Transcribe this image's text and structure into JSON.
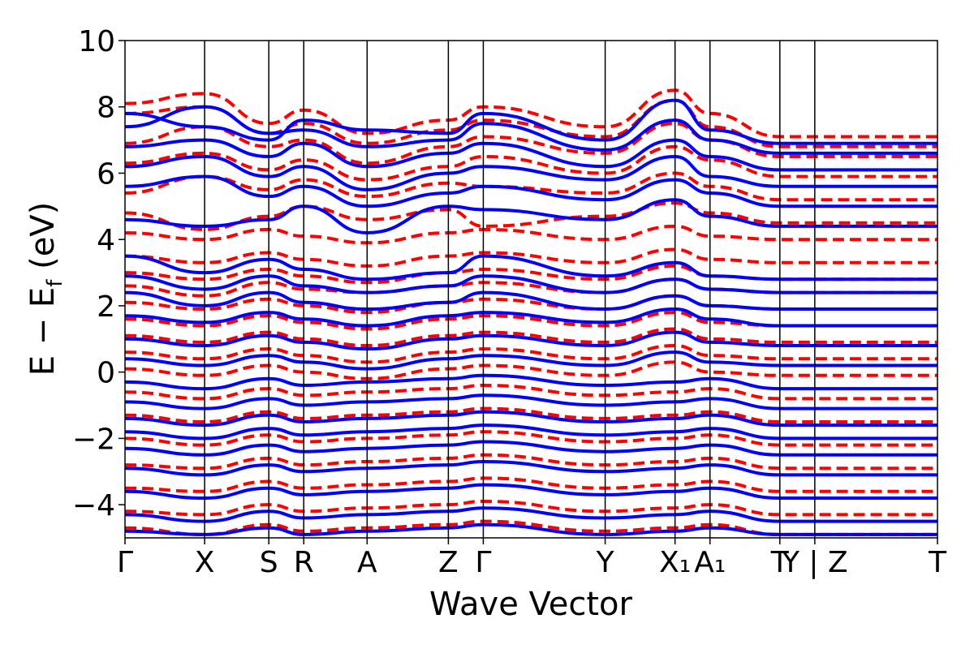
{
  "chart_data": {
    "type": "line",
    "title": "",
    "xlabel": "Wave Vector",
    "ylabel_parts": {
      "main": "E − E",
      "sub": "f",
      "unit": " (eV)"
    },
    "ylim": [
      -5,
      10
    ],
    "yticks": [
      -4,
      -2,
      0,
      2,
      4,
      6,
      8,
      10
    ],
    "ytick_labels": [
      "−4",
      "−2",
      "0",
      "2",
      "4",
      "6",
      "8",
      "10"
    ],
    "xlim": [
      0,
      10
    ],
    "kpoints": [
      {
        "label": "Γ",
        "pos": 0.0
      },
      {
        "label": "X",
        "pos": 0.98
      },
      {
        "label": "S",
        "pos": 1.77
      },
      {
        "label": "R",
        "pos": 2.2
      },
      {
        "label": "A",
        "pos": 2.98
      },
      {
        "label": "Z",
        "pos": 3.98
      },
      {
        "label": "Γ",
        "pos": 4.41
      },
      {
        "label": "Y",
        "pos": 5.91
      },
      {
        "label": "X₁",
        "pos": 6.77
      },
      {
        "label": "A₁",
        "pos": 7.2
      },
      {
        "label": "T",
        "pos": 8.06
      },
      {
        "label": "Y | Z",
        "pos": 8.49
      },
      {
        "label": "T",
        "pos": 10.0
      }
    ],
    "series": [
      {
        "style": "dashed",
        "color": "#ff0000",
        "bands": [
          [
            8.1,
            8.4,
            7.5,
            7.9,
            7.2,
            7.6,
            8.0,
            7.4,
            8.5,
            7.8,
            7.1
          ],
          [
            7.8,
            8.0,
            7.2,
            7.5,
            6.9,
            7.3,
            7.6,
            7.1,
            8.2,
            7.4,
            6.8
          ],
          [
            6.9,
            7.4,
            6.8,
            7.0,
            6.3,
            6.8,
            7.1,
            6.6,
            7.5,
            7.0,
            6.5
          ],
          [
            6.3,
            6.6,
            6.1,
            6.4,
            5.8,
            6.2,
            6.5,
            6.0,
            6.8,
            6.4,
            5.9
          ],
          [
            5.4,
            5.9,
            5.5,
            5.8,
            5.3,
            5.7,
            5.6,
            5.4,
            6.0,
            5.6,
            5.2
          ],
          [
            4.8,
            4.3,
            4.7,
            5.0,
            4.6,
            4.9,
            4.4,
            4.7,
            5.1,
            4.8,
            4.5
          ],
          [
            4.2,
            4.0,
            4.3,
            4.1,
            3.9,
            4.2,
            4.3,
            4.0,
            4.4,
            4.1,
            4.0
          ],
          [
            3.5,
            3.3,
            3.6,
            3.4,
            3.2,
            3.5,
            3.6,
            3.3,
            3.7,
            3.4,
            3.3
          ],
          [
            3.0,
            2.8,
            3.1,
            2.9,
            2.7,
            3.0,
            3.1,
            2.8,
            3.2,
            2.9,
            2.8
          ],
          [
            2.6,
            2.3,
            2.7,
            2.5,
            2.4,
            2.6,
            2.7,
            2.4,
            2.8,
            2.5,
            2.4
          ],
          [
            2.1,
            1.9,
            2.2,
            2.0,
            1.8,
            2.1,
            2.2,
            1.9,
            2.3,
            2.0,
            1.9
          ],
          [
            1.6,
            1.4,
            1.7,
            1.5,
            1.3,
            1.6,
            1.7,
            1.4,
            1.8,
            1.5,
            1.4
          ],
          [
            1.1,
            0.9,
            1.2,
            1.0,
            0.8,
            1.1,
            1.2,
            0.9,
            1.3,
            1.0,
            0.9
          ],
          [
            0.6,
            0.4,
            0.7,
            0.5,
            0.3,
            0.6,
            0.7,
            0.4,
            0.8,
            0.5,
            0.4
          ],
          [
            0.1,
            -0.1,
            0.2,
            0.0,
            -0.2,
            0.1,
            0.2,
            -0.1,
            0.3,
            0.0,
            -0.1
          ],
          [
            -0.6,
            -0.8,
            -0.5,
            -0.7,
            -0.6,
            -0.5,
            -0.4,
            -0.7,
            -0.6,
            -0.5,
            -0.8
          ],
          [
            -1.3,
            -1.5,
            -1.2,
            -1.4,
            -1.3,
            -1.2,
            -1.1,
            -1.4,
            -1.3,
            -1.2,
            -1.5
          ],
          [
            -2.0,
            -2.2,
            -1.9,
            -2.1,
            -2.0,
            -1.9,
            -1.8,
            -2.1,
            -2.0,
            -1.9,
            -2.2
          ],
          [
            -2.8,
            -2.9,
            -2.6,
            -2.8,
            -2.7,
            -2.6,
            -2.5,
            -2.8,
            -2.7,
            -2.6,
            -2.9
          ],
          [
            -3.5,
            -3.6,
            -3.3,
            -3.5,
            -3.4,
            -3.3,
            -3.2,
            -3.5,
            -3.4,
            -3.3,
            -3.6
          ],
          [
            -4.2,
            -4.3,
            -4.0,
            -4.2,
            -4.1,
            -4.0,
            -3.9,
            -4.2,
            -4.1,
            -4.0,
            -4.3
          ],
          [
            -4.7,
            -4.9,
            -4.6,
            -4.8,
            -4.7,
            -4.6,
            -4.5,
            -4.8,
            -4.7,
            -4.6,
            -4.9
          ]
        ]
      },
      {
        "style": "solid",
        "color": "#0000ff",
        "bands": [
          [
            7.8,
            7.4,
            7.0,
            7.6,
            7.3,
            7.2,
            7.8,
            7.0,
            8.2,
            7.3,
            6.9
          ],
          [
            7.4,
            8.0,
            7.2,
            7.3,
            6.8,
            7.0,
            7.5,
            6.7,
            7.6,
            7.0,
            6.6
          ],
          [
            6.8,
            7.0,
            6.5,
            6.9,
            6.2,
            6.6,
            6.9,
            6.2,
            7.0,
            6.5,
            6.1
          ],
          [
            6.2,
            6.5,
            5.9,
            6.2,
            5.5,
            6.0,
            6.2,
            5.8,
            6.5,
            5.9,
            5.6
          ],
          [
            5.6,
            5.9,
            5.3,
            5.6,
            5.0,
            5.4,
            5.6,
            5.2,
            5.8,
            5.4,
            5.0
          ],
          [
            4.6,
            4.4,
            4.6,
            5.0,
            4.2,
            5.0,
            4.9,
            4.6,
            5.2,
            4.7,
            4.4
          ],
          [
            3.5,
            3.0,
            3.4,
            3.1,
            2.8,
            3.0,
            3.5,
            2.9,
            3.3,
            2.9,
            2.8
          ],
          [
            2.9,
            2.5,
            2.9,
            2.6,
            2.4,
            2.6,
            2.9,
            2.4,
            2.8,
            2.5,
            2.4
          ],
          [
            2.4,
            2.0,
            2.4,
            2.1,
            1.9,
            2.1,
            2.4,
            1.9,
            2.3,
            2.0,
            1.9
          ],
          [
            1.7,
            1.5,
            1.8,
            1.6,
            1.4,
            1.7,
            1.8,
            1.5,
            1.9,
            1.6,
            1.4
          ],
          [
            1.0,
            0.8,
            1.1,
            0.9,
            0.7,
            1.0,
            1.1,
            0.8,
            1.2,
            0.9,
            0.8
          ],
          [
            0.4,
            0.2,
            0.5,
            0.3,
            0.1,
            0.4,
            0.5,
            0.2,
            0.6,
            0.3,
            0.2
          ],
          [
            -0.3,
            -0.5,
            -0.2,
            -0.4,
            -0.3,
            -0.2,
            -0.1,
            -0.4,
            -0.3,
            -0.2,
            -0.5
          ],
          [
            -0.9,
            -1.1,
            -0.8,
            -1.0,
            -0.9,
            -0.8,
            -0.7,
            -1.0,
            -0.9,
            -0.8,
            -1.1
          ],
          [
            -1.4,
            -1.6,
            -1.3,
            -1.5,
            -1.4,
            -1.3,
            -1.2,
            -1.5,
            -1.4,
            -1.3,
            -1.6
          ],
          [
            -1.8,
            -2.0,
            -1.7,
            -1.9,
            -1.8,
            -1.7,
            -1.6,
            -1.9,
            -1.8,
            -1.7,
            -2.0
          ],
          [
            -2.3,
            -2.5,
            -2.2,
            -2.4,
            -2.3,
            -2.2,
            -2.1,
            -2.4,
            -2.3,
            -2.2,
            -2.5
          ],
          [
            -2.9,
            -3.1,
            -2.8,
            -3.0,
            -2.9,
            -2.8,
            -2.7,
            -3.0,
            -2.9,
            -2.8,
            -3.1
          ],
          [
            -3.6,
            -3.8,
            -3.5,
            -3.7,
            -3.6,
            -3.5,
            -3.4,
            -3.7,
            -3.6,
            -3.5,
            -3.8
          ],
          [
            -4.3,
            -4.5,
            -4.2,
            -4.4,
            -4.3,
            -4.2,
            -4.1,
            -4.4,
            -4.3,
            -4.2,
            -4.5
          ],
          [
            -4.8,
            -4.9,
            -4.7,
            -4.9,
            -4.8,
            -4.7,
            -4.6,
            -4.9,
            -4.8,
            -4.7,
            -4.9
          ]
        ]
      }
    ],
    "grid": false,
    "legend": "none"
  }
}
